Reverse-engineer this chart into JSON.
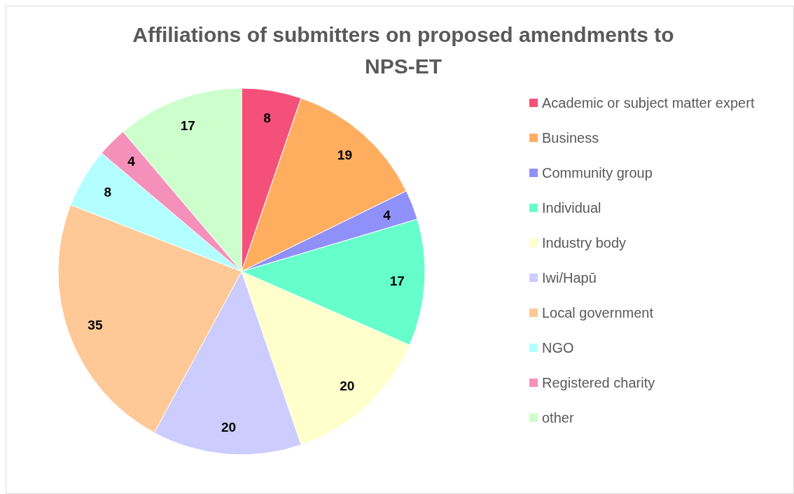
{
  "chart_data": {
    "type": "pie",
    "title": "Affiliations of submitters on proposed amendments to NPS-ET",
    "categories": [
      "Academic or subject matter expert",
      "Business",
      "Community group",
      "Individual",
      "Industry body",
      "Iwi/Hapū",
      "Local government",
      "NGO",
      "Registered charity",
      "other"
    ],
    "values": [
      8,
      19,
      4,
      17,
      20,
      20,
      35,
      8,
      4,
      17
    ],
    "colors": [
      "#f5507a",
      "#ffae60",
      "#9090fa",
      "#66ffcc",
      "#ffffcc",
      "#ccccff",
      "#ffc897",
      "#b3ffff",
      "#f590bb",
      "#ccffcc"
    ],
    "data_labels": true,
    "legend": "right"
  }
}
